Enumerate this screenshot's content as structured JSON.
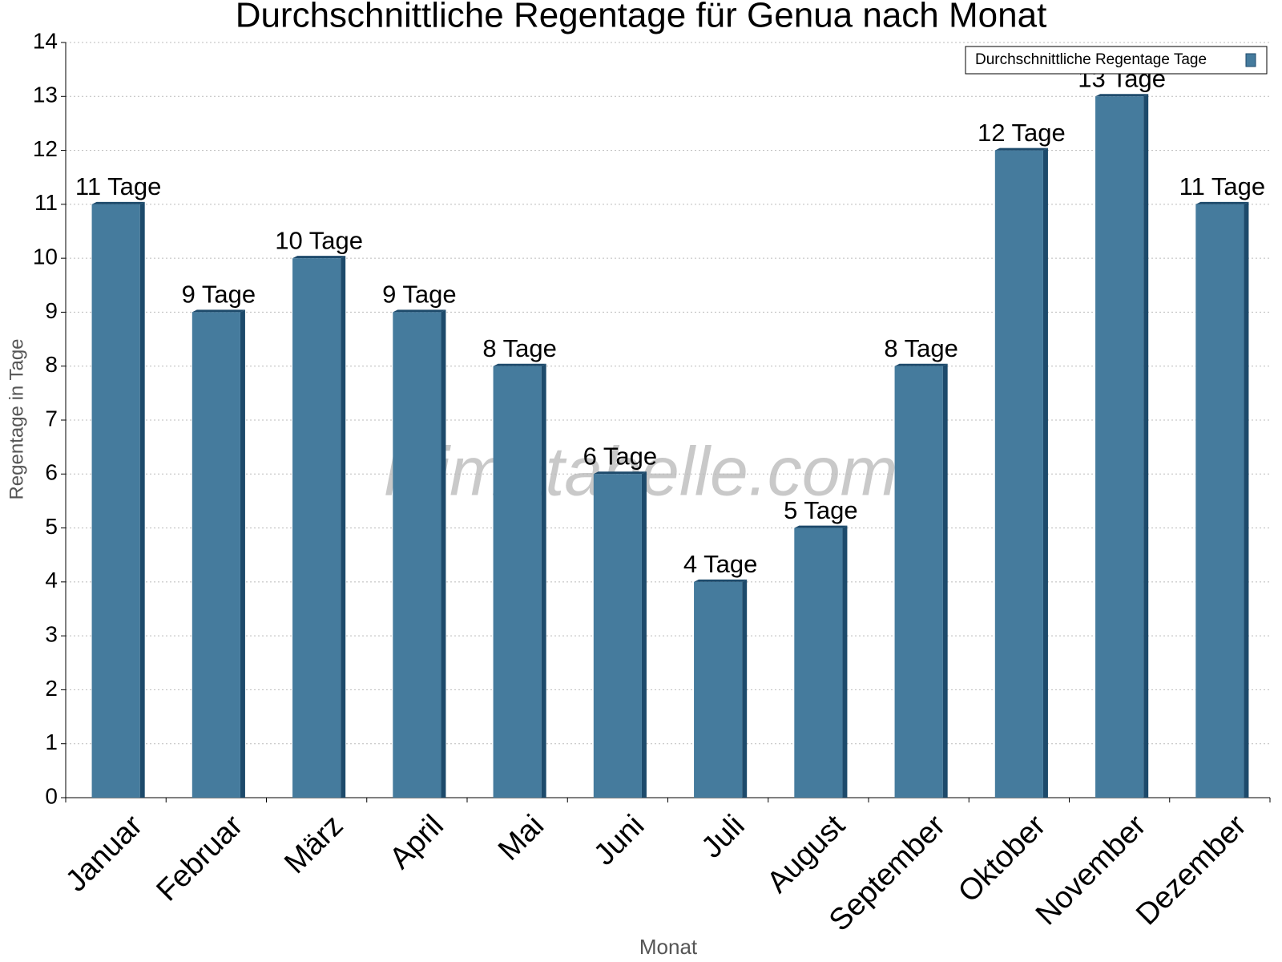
{
  "chart_data": {
    "type": "bar",
    "title": "Durchschnittliche Regentage für Genua nach Monat",
    "x_label": "Monat",
    "y_label": "Regentage in Tage",
    "watermark": "klimatabelle.com",
    "categories": [
      "Januar",
      "Februar",
      "März",
      "April",
      "Mai",
      "Juni",
      "Juli",
      "August",
      "September",
      "Oktober",
      "November",
      "Dezember"
    ],
    "series": [
      {
        "name": "Durchschnittliche Regentage Tage",
        "color": "#457b9d",
        "values": [
          11,
          9,
          10,
          9,
          8,
          6,
          4,
          5,
          8,
          12,
          13,
          11
        ],
        "value_labels": [
          "11 Tage",
          "9 Tage",
          "10 Tage",
          "9 Tage",
          "8 Tage",
          "6 Tage",
          "4 Tage",
          "5 Tage",
          "8 Tage",
          "12 Tage",
          "13 Tage",
          "11 Tage"
        ]
      }
    ],
    "ylim": [
      0,
      14
    ],
    "yticks": [
      0,
      1,
      2,
      3,
      4,
      5,
      6,
      7,
      8,
      9,
      10,
      11,
      12,
      13,
      14
    ],
    "grid": true,
    "legend": "top-right"
  }
}
